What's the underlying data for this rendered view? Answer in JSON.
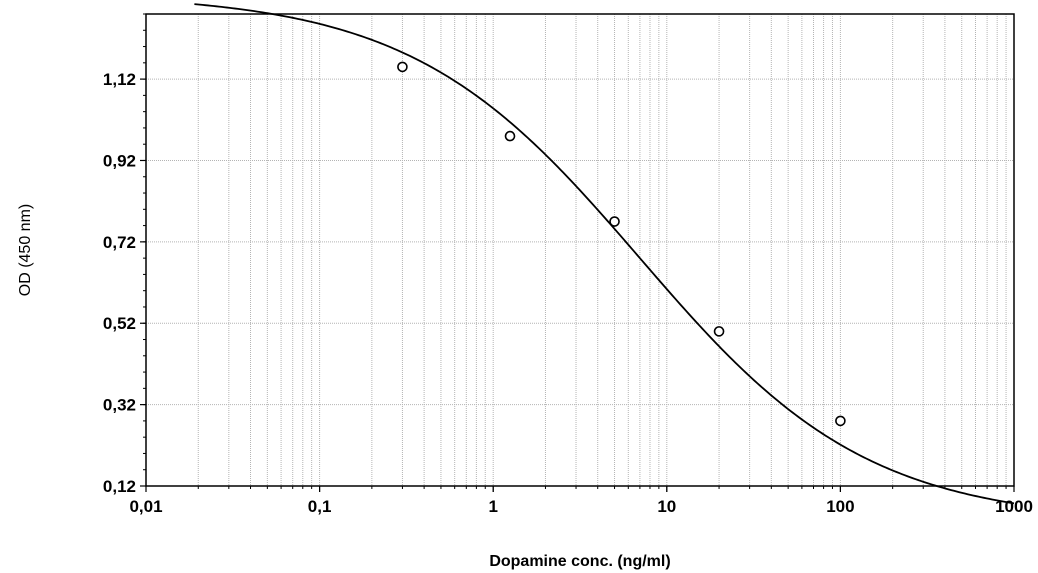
{
  "chart_data": {
    "type": "scatter",
    "title": "",
    "xlabel": "Dopamine conc. (ng/ml)",
    "ylabel": "OD (450 nm)",
    "xscale": "log",
    "xlim": [
      0.01,
      1000
    ],
    "ylim": [
      0.12,
      1.28
    ],
    "x_tick_labels": [
      "0,01",
      "0,1",
      "1",
      "10",
      "100",
      "1000"
    ],
    "x_tick_values": [
      0.01,
      0.1,
      1,
      10,
      100,
      1000
    ],
    "y_tick_labels": [
      "0,12",
      "0,32",
      "0,52",
      "0,72",
      "0,92",
      "1,12"
    ],
    "y_tick_values": [
      0.12,
      0.32,
      0.52,
      0.72,
      0.92,
      1.12
    ],
    "grid": true,
    "legend": "none",
    "series": [
      {
        "marker": "circle",
        "x": [
          0.3,
          1.25,
          5,
          20,
          100
        ],
        "y": [
          1.15,
          0.98,
          0.77,
          0.5,
          0.28
        ]
      }
    ],
    "fit_curve": {
      "model": "4PL",
      "top": 1.33,
      "bottom": 0.03,
      "ec50": 7,
      "slope": 0.66
    },
    "colors": {
      "line": "#000000",
      "grid": "#b4b4b4",
      "background": "#ffffff"
    }
  }
}
